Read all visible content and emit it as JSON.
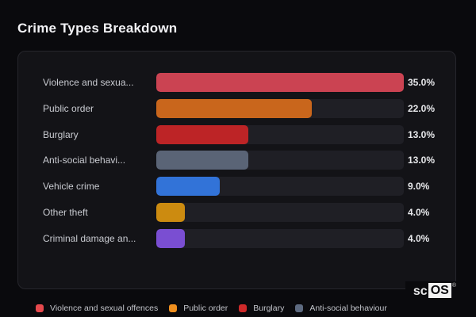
{
  "header": {
    "title": "Crime Types Breakdown"
  },
  "brand": {
    "prefix": "sc",
    "box": "OS",
    "registered": "®"
  },
  "theme_colors": {
    "page_bg": "#0a0a0d",
    "panel_bg": "#131317",
    "panel_border": "#26262c",
    "track_bg": "#1f1f25",
    "title_text": "#f2f2f5",
    "label_text": "#c9cbd1",
    "value_text": "#e8e9ec",
    "legend_text": "#c2c4ca"
  },
  "chart_data": {
    "type": "bar",
    "orientation": "horizontal",
    "title": "Crime Types Breakdown",
    "categories": [
      "Violence and sexual offences",
      "Public order",
      "Burglary",
      "Anti-social behaviour",
      "Vehicle crime",
      "Other theft",
      "Criminal damage an..."
    ],
    "display_labels": [
      "Violence and sexua...",
      "Public order",
      "Burglary",
      "Anti-social behavi...",
      "Vehicle crime",
      "Other theft",
      "Criminal damage an..."
    ],
    "values": [
      35.0,
      22.0,
      13.0,
      13.0,
      9.0,
      4.0,
      4.0
    ],
    "value_labels": [
      "35.0%",
      "22.0%",
      "13.0%",
      "13.0%",
      "9.0%",
      "4.0%",
      "4.0%"
    ],
    "bar_colors": [
      "#cb4352",
      "#c9661c",
      "#bd2426",
      "#5a6476",
      "#3273d8",
      "#cc8b10",
      "#7a4ed2"
    ],
    "max_value": 35.0,
    "xlim": [
      0,
      35
    ],
    "grid": false,
    "value_suffix": "%",
    "legend_position": "bottom",
    "legend": [
      {
        "label": "Violence and sexual offences",
        "color": "#e6494d"
      },
      {
        "label": "Public order",
        "color": "#ef8f1e"
      },
      {
        "label": "Burglary",
        "color": "#cf2a2a"
      },
      {
        "label": "Anti-social behaviour",
        "color": "#5d6a80"
      }
    ]
  }
}
